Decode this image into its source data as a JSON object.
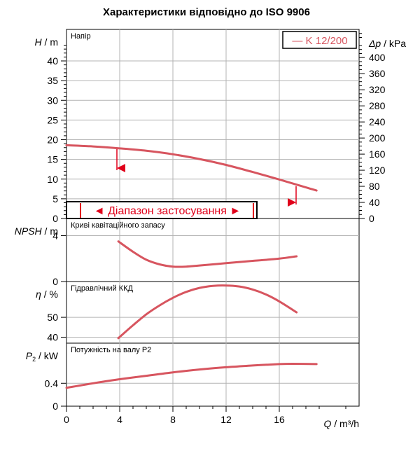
{
  "title": "Характеристики відповідно до ISO 9906",
  "colors": {
    "curve": "#d7555f",
    "accent": "#e0001a",
    "axis": "#000000"
  },
  "legend": {
    "label": "— K 12/200"
  },
  "operating_range": {
    "label": "◄ Діапазон застосування ►"
  },
  "x_axis": {
    "label_var": "Q",
    "label_unit": " / m³/h",
    "ticks": [
      0,
      4,
      8,
      12,
      16
    ],
    "range": [
      0,
      22
    ]
  },
  "chart_data": [
    {
      "type": "line",
      "panel_label": "Напір",
      "ylabel_var": "H",
      "ylabel_unit": " / m",
      "ylim": [
        0,
        48
      ],
      "yticks": [
        0,
        5,
        10,
        15,
        20,
        25,
        30,
        35,
        40
      ],
      "secondary_axis": {
        "label_var": "Δp",
        "label_unit": " / kPa",
        "ylim": [
          0,
          470
        ],
        "ticks": [
          0,
          40,
          80,
          120,
          160,
          200,
          240,
          280,
          320,
          360,
          400
        ]
      },
      "x": [
        0,
        2,
        4,
        6,
        8,
        10,
        12,
        14,
        16,
        18,
        18.8
      ],
      "y": [
        18.6,
        18.3,
        17.8,
        17.2,
        16.3,
        15.1,
        13.6,
        11.8,
        9.9,
        7.9,
        7.1
      ]
    },
    {
      "type": "line",
      "panel_label": "Криві кавітаційного запасу",
      "ylabel_var": "NPSH",
      "ylabel_unit": " / m",
      "ylim": [
        0,
        5.5
      ],
      "yticks": [
        0,
        4
      ],
      "x": [
        3.9,
        5,
        6,
        7,
        8,
        9,
        10,
        12,
        14,
        16,
        17.3
      ],
      "y": [
        3.5,
        2.6,
        1.9,
        1.5,
        1.3,
        1.3,
        1.4,
        1.6,
        1.8,
        2.0,
        2.2
      ]
    },
    {
      "type": "line",
      "panel_label": "Гідравлічний ККД",
      "ylabel_var": "η",
      "ylabel_unit": " / %",
      "ylim": [
        37,
        68
      ],
      "yticks": [
        40,
        50
      ],
      "x": [
        3.9,
        5,
        6,
        7,
        8,
        9,
        10,
        11,
        12,
        13,
        14,
        15,
        16,
        17.3
      ],
      "y": [
        39.5,
        46,
        51.5,
        56,
        59.8,
        62.8,
        64.8,
        65.8,
        66,
        65.5,
        64,
        61.5,
        58,
        52.5
      ]
    },
    {
      "type": "line",
      "panel_label": "Потужність на валу P2",
      "ylabel_var": "P",
      "ylabel_sub": "2",
      "ylabel_unit": " / kW",
      "ylim": [
        0,
        1.1
      ],
      "yticks": [
        0,
        0.4
      ],
      "x": [
        0,
        2,
        4,
        6,
        8,
        10,
        12,
        14,
        16,
        17,
        18.8
      ],
      "y": [
        0.32,
        0.4,
        0.47,
        0.53,
        0.59,
        0.64,
        0.68,
        0.71,
        0.735,
        0.74,
        0.735
      ]
    }
  ]
}
